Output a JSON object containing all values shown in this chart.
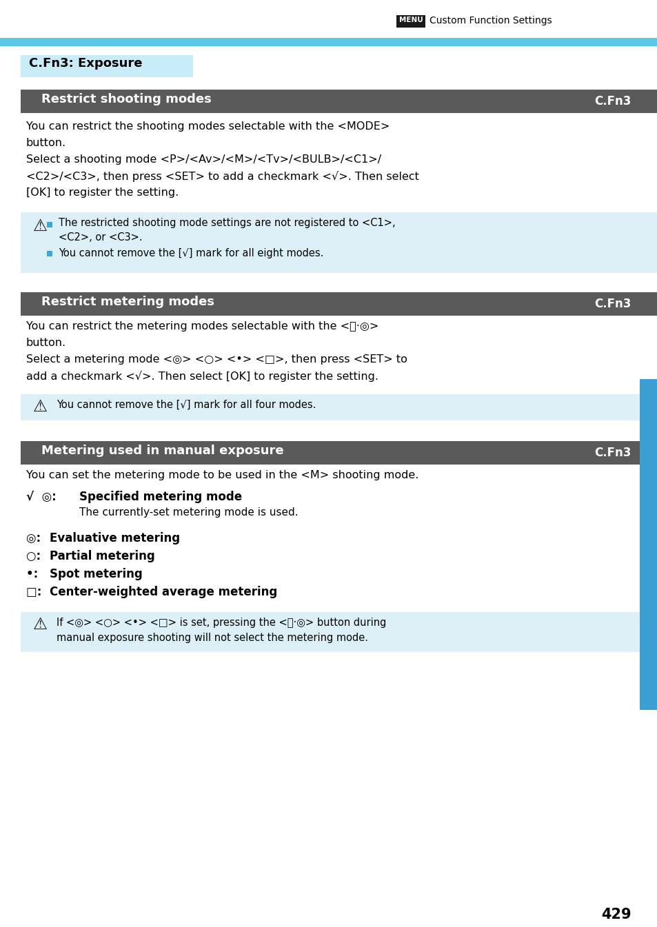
{
  "page_width": 9.54,
  "page_height": 13.45,
  "dpi": 100,
  "bg_color": "#ffffff",
  "top_bar_color": "#5bc8e8",
  "section1_bg": "#c8ecf8",
  "bar_bg": "#5a5a5a",
  "bar_text_color": "#ffffff",
  "note_bg": "#ddf0f8",
  "right_bar_color": "#3b9fd4",
  "header_menu_bg": "#1a1a1a",
  "header_menu_text": "MENU",
  "header_suffix": "  Custom Function Settings",
  "section1_title": "C.Fn3: Exposure",
  "bar1_title": "Restrict shooting modes",
  "bar1_label": "C.Fn3",
  "bar2_title": "Restrict metering modes",
  "bar2_label": "C.Fn3",
  "bar3_title": "Metering used in manual exposure",
  "bar3_label": "C.Fn3",
  "page_number": "429"
}
